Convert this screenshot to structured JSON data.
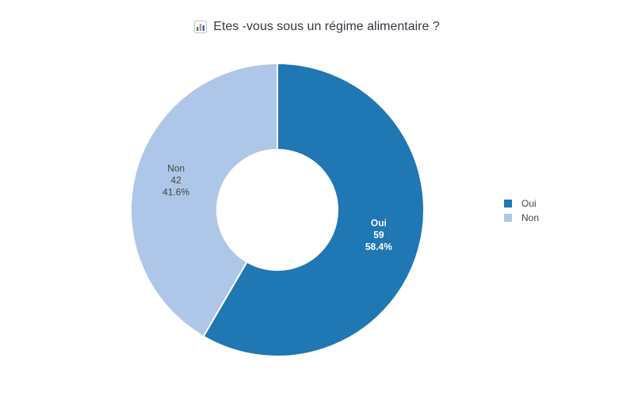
{
  "header": {
    "title": "Etes -vous sous un régime alimentaire ?",
    "icon": "bar-chart-icon"
  },
  "chart_data": {
    "type": "pie",
    "title": "Etes -vous sous un régime alimentaire ?",
    "categories": [
      "Oui",
      "Non"
    ],
    "values": [
      59,
      42
    ],
    "percentages": [
      "58.4%",
      "41.6%"
    ],
    "colors": [
      "#1f77b4",
      "#aec7e8"
    ],
    "label_colors": [
      "#ffffff",
      "#444444"
    ],
    "legend": "right",
    "donut": true
  }
}
